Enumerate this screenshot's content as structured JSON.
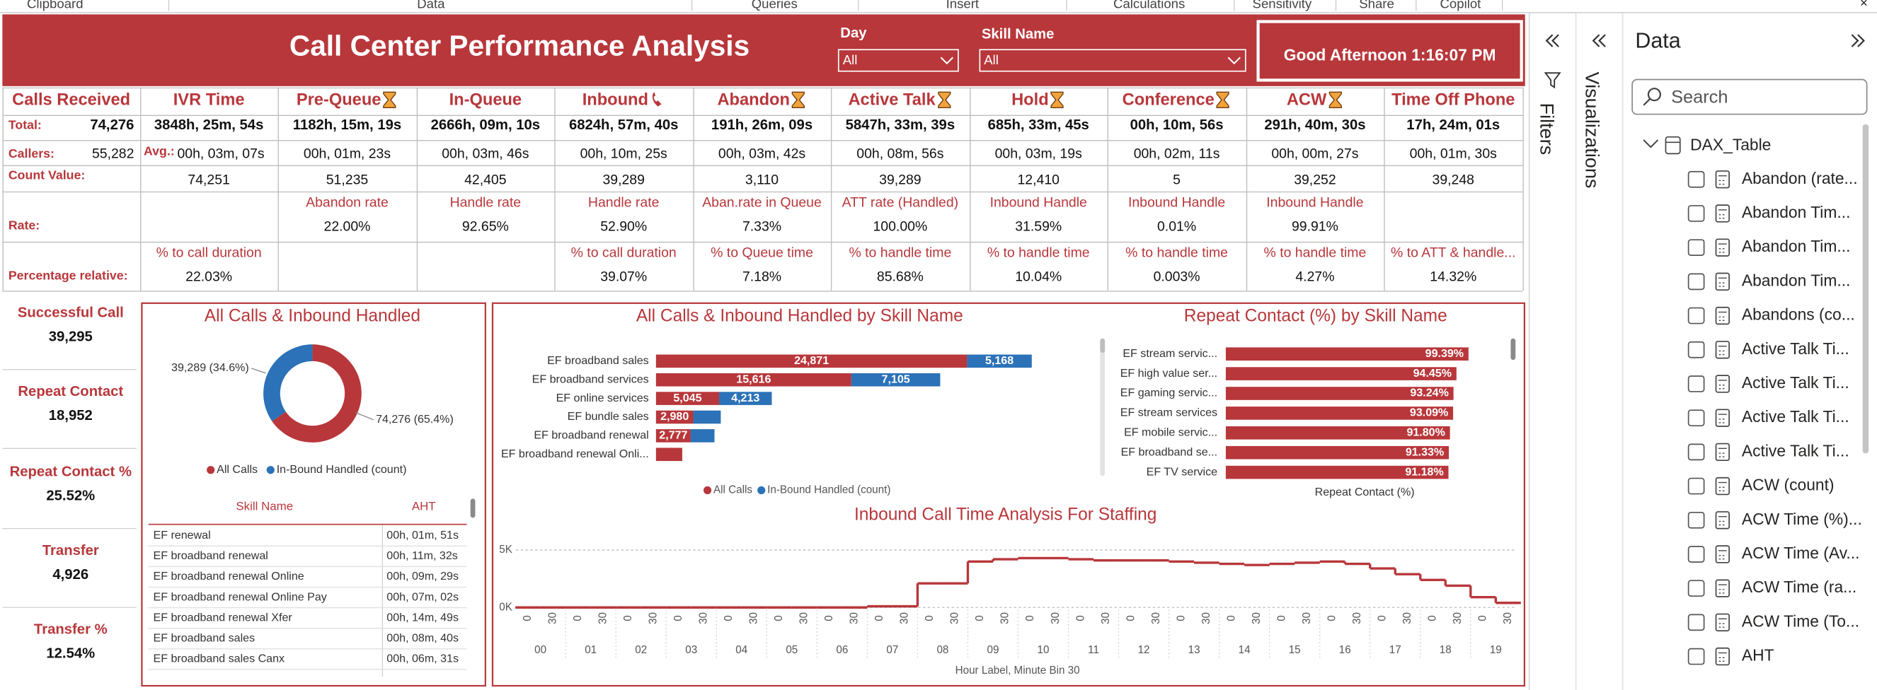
{
  "ribbon": [
    "Clipboard",
    "Data",
    "Queries",
    "Insert",
    "Calculations",
    "Sensitivity",
    "Share",
    "Copilot"
  ],
  "header": {
    "title": "Call Center Performance Analysis",
    "greeting": "Good Afternoon 1:16:07 PM"
  },
  "slicers": [
    {
      "label": "Day",
      "value": "All"
    },
    {
      "label": "Skill Name",
      "value": "All"
    }
  ],
  "kpi": {
    "first_column": {
      "header": "Calls Received",
      "total_label": "Total:",
      "total": "74,276",
      "callers_label": "Callers:",
      "callers": "55,282",
      "avg_label": "Avg.:",
      "count_label": "Count Value:",
      "rate_label": "Rate:",
      "relative_label": "Percentage relative:"
    },
    "columns": [
      {
        "header": "IVR Time",
        "total": "3848h, 25m, 54s",
        "avg": "00h, 03m, 07s",
        "count": "74,251",
        "relative_name": "% to call duration",
        "relative": "22.03%"
      },
      {
        "header": "Pre-Queue",
        "total": "1182h, 15m, 19s",
        "avg": "00h, 01m, 23s",
        "count": "51,235",
        "rate_name": "Abandon rate",
        "rate": "22.00%"
      },
      {
        "header": "In-Queue",
        "total": "2666h, 09m, 10s",
        "avg": "00h, 03m, 46s",
        "count": "42,405",
        "rate_name": "Handle rate",
        "rate": "92.65%"
      },
      {
        "header": "Inbound",
        "total": "6824h, 57m, 40s",
        "avg": "00h, 10m, 25s",
        "count": "39,289",
        "rate_name": "Handle rate",
        "rate": "52.90%",
        "relative_name": "% to call duration",
        "relative": "39.07%"
      },
      {
        "header": "Abandon",
        "total": "191h, 26m, 09s",
        "avg": "00h, 03m, 42s",
        "count": "3,110",
        "rate_name": "Aban.rate in Queue",
        "rate": "7.33%",
        "relative_name": "% to Queue time",
        "relative": "7.18%"
      },
      {
        "header": "Active Talk",
        "total": "5847h, 33m, 39s",
        "avg": "00h, 08m, 56s",
        "count": "39,289",
        "rate_name": "ATT rate (Handled)",
        "rate": "100.00%",
        "relative_name": "% to handle time",
        "relative": "85.68%"
      },
      {
        "header": "Hold",
        "total": "685h, 33m, 45s",
        "avg": "00h, 03m, 19s",
        "count": "12,410",
        "rate_name": "Inbound Handle",
        "rate": "31.59%",
        "relative_name": "% to handle time",
        "relative": "10.04%"
      },
      {
        "header": "Conference",
        "total": "00h, 10m, 56s",
        "avg": "00h, 02m, 11s",
        "count": "5",
        "rate_name": "Inbound Handle",
        "rate": "0.01%",
        "relative_name": "% to handle time",
        "relative": "0.003%"
      },
      {
        "header": "ACW",
        "total": "291h, 40m, 30s",
        "avg": "00h, 00m, 27s",
        "count": "39,252",
        "rate_name": "Inbound Handle",
        "rate": "99.91%",
        "relative_name": "% to handle time",
        "relative": "4.27%"
      },
      {
        "header": "Time Off Phone",
        "total": "17h, 24m, 01s",
        "avg": "00h, 01m, 30s",
        "count": "39,248",
        "relative_name": "% to ATT & handle...",
        "relative": "14.32%"
      }
    ]
  },
  "cards": [
    {
      "label": "Successful Call",
      "value": "39,295"
    },
    {
      "label": "Repeat Contact",
      "value": "18,952"
    },
    {
      "label": "Repeat Contact %",
      "value": "25.52%"
    },
    {
      "label": "Transfer",
      "value": "4,926"
    },
    {
      "label": "Transfer %",
      "value": "12.54%"
    }
  ],
  "aht_table": {
    "columns": [
      "Skill Name",
      "AHT"
    ],
    "rows": [
      [
        "EF renewal",
        "00h, 01m, 51s"
      ],
      [
        "EF broadband renewal",
        "00h, 11m, 32s"
      ],
      [
        "EF broadband renewal Online",
        "00h, 09m, 29s"
      ],
      [
        "EF broadband renewal Online Pay",
        "00h, 07m, 02s"
      ],
      [
        "EF broadband renewal Xfer",
        "00h, 14m, 49s"
      ],
      [
        "EF broadband sales",
        "00h, 08m, 40s"
      ],
      [
        "EF broadband sales Canx",
        "00h, 06m, 31s"
      ]
    ]
  },
  "chart_data": [
    {
      "type": "pie",
      "title": "All Calls & Inbound Handled",
      "categories": [
        "All Calls",
        "In-Bound Handled (count)"
      ],
      "values": [
        74276,
        39289
      ],
      "value_labels": [
        "74,276 (65.4%)",
        "39,289 (34.6%)"
      ],
      "colors": [
        "#b8373b",
        "#2c72b8"
      ]
    },
    {
      "type": "bar",
      "orientation": "horizontal",
      "stacked": true,
      "title": "All Calls & Inbound Handled by Skill Name",
      "categories": [
        "EF broadband sales",
        "EF broadband services",
        "EF online services",
        "EF bundle sales",
        "EF broadband renewal",
        "EF broadband renewal Onli..."
      ],
      "series": [
        {
          "name": "All Calls",
          "color": "#b8373b",
          "values": [
            24871,
            15616,
            5045,
            2980,
            2777,
            2100
          ],
          "value_labels": [
            "24,871",
            "15,616",
            "5,045",
            "2,980",
            "2,777",
            null
          ]
        },
        {
          "name": "In-Bound Handled (count)",
          "color": "#2c72b8",
          "values": [
            5168,
            7105,
            4213,
            2200,
            1900,
            null
          ],
          "value_labels": [
            "5,168",
            "7,105",
            "4,213",
            null,
            null,
            null
          ]
        }
      ],
      "xlim": [
        0,
        32000
      ]
    },
    {
      "type": "bar",
      "orientation": "horizontal",
      "title": "Repeat Contact (%) by Skill Name",
      "xlabel": "Repeat Contact (%)",
      "categories": [
        "EF stream servic...",
        "EF high value ser...",
        "EF gaming servic...",
        "EF stream services",
        "EF mobile servic...",
        "EF broadband se...",
        "EF TV service"
      ],
      "values": [
        99.39,
        94.45,
        93.24,
        93.09,
        91.8,
        91.33,
        91.18
      ],
      "value_labels": [
        "99.39%",
        "94.45%",
        "93.24%",
        "93.09%",
        "91.80%",
        "91.33%",
        "91.18%"
      ],
      "color": "#b8373b",
      "xlim": [
        0,
        100
      ]
    },
    {
      "type": "line",
      "step": true,
      "title": "Inbound Call Time Analysis For Staffing",
      "xlabel": "Hour Label, Minute Bin 30",
      "hours": [
        "00",
        "01",
        "02",
        "03",
        "04",
        "05",
        "06",
        "07",
        "08",
        "09",
        "10",
        "11",
        "12",
        "13",
        "14",
        "15",
        "16",
        "17",
        "18",
        "19"
      ],
      "categories": [
        "0",
        "30",
        "0",
        "30",
        "0",
        "30",
        "0",
        "30",
        "0",
        "30",
        "0",
        "30",
        "0",
        "30",
        "0",
        "30",
        "0",
        "30",
        "0",
        "30",
        "0",
        "30",
        "0",
        "30",
        "0",
        "30",
        "0",
        "30",
        "0",
        "30",
        "0",
        "30",
        "0",
        "30",
        "0",
        "30",
        "0",
        "30",
        "0",
        "30"
      ],
      "values": [
        0,
        0,
        0,
        0,
        0,
        0,
        0,
        0,
        0,
        0,
        0,
        0,
        0,
        0,
        100,
        100,
        2100,
        2100,
        4000,
        4200,
        4300,
        4300,
        4200,
        4100,
        4100,
        4100,
        4000,
        3900,
        3800,
        3700,
        3800,
        3900,
        4000,
        3800,
        3400,
        2900,
        2400,
        1900,
        900,
        400
      ],
      "ylim": [
        0,
        6500
      ],
      "yticks": [
        {
          "value": 0,
          "label": "0K"
        },
        {
          "value": 5000,
          "label": "5K"
        }
      ],
      "grid": true,
      "color": "#b8373b"
    }
  ],
  "panes": {
    "filters": "Filters",
    "visualizations": "Visualizations",
    "data": "Data",
    "search": "Search",
    "table_name": "DAX_Table",
    "fields": [
      "Abandon (rate...",
      "Abandon Tim...",
      "Abandon Tim...",
      "Abandon Tim...",
      "Abandons (co...",
      "Active Talk Ti...",
      "Active Talk Ti...",
      "Active Talk Ti...",
      "Active Talk Ti...",
      "ACW (count)",
      "ACW Time (%)...",
      "ACW Time (Av...",
      "ACW Time (ra...",
      "ACW Time (To...",
      "AHT"
    ]
  }
}
